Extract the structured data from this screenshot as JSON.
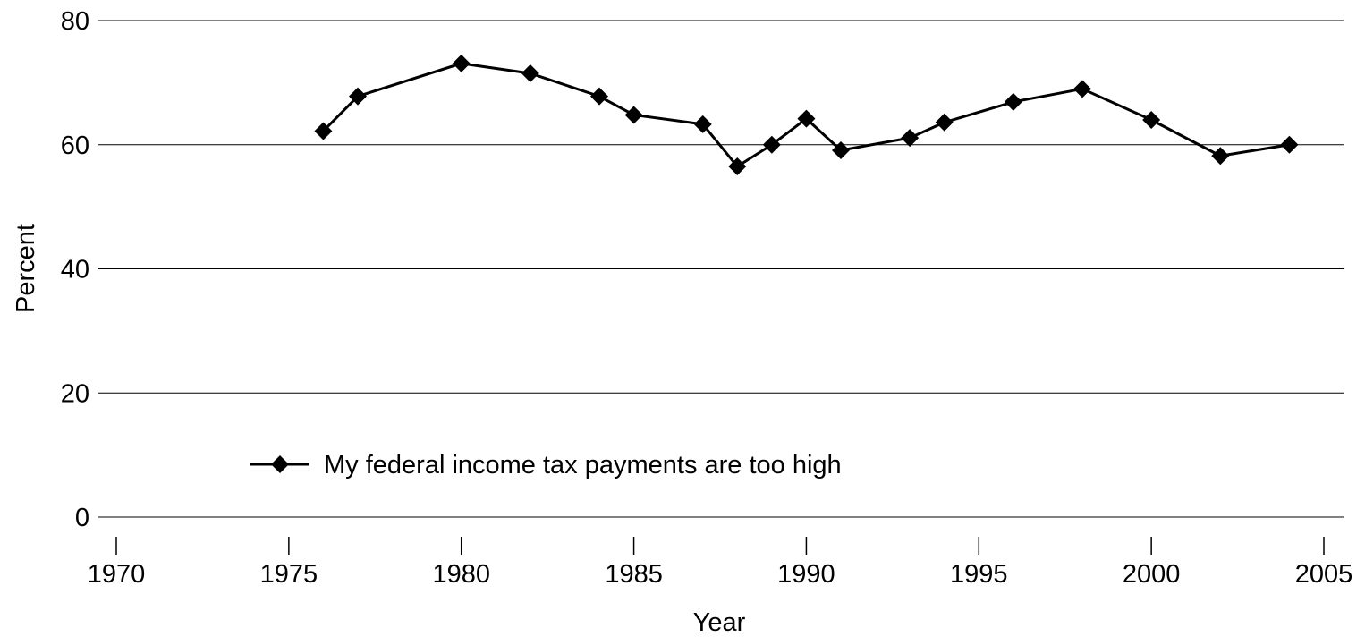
{
  "chart_data": {
    "type": "line",
    "title": "",
    "xlabel": "Year",
    "ylabel": "Percent",
    "xlim": [
      1970,
      2005
    ],
    "ylim": [
      0,
      80
    ],
    "x_ticks": [
      1970,
      1975,
      1980,
      1985,
      1990,
      1995,
      2000,
      2005
    ],
    "y_ticks": [
      0,
      20,
      40,
      60,
      80
    ],
    "grid": "horizontal",
    "legend_position": "lower-left",
    "series": [
      {
        "name": "My federal income tax payments are too high",
        "color": "#000000",
        "marker": "diamond",
        "x": [
          1976,
          1977,
          1980,
          1982,
          1984,
          1985,
          1987,
          1988,
          1989,
          1990,
          1991,
          1993,
          1994,
          1996,
          1998,
          2000,
          2002,
          2004
        ],
        "y": [
          62.2,
          67.8,
          73.1,
          71.5,
          67.8,
          64.8,
          63.3,
          56.5,
          60.0,
          64.2,
          59.1,
          61.1,
          63.6,
          66.9,
          69.0,
          64.0,
          58.2,
          60.0
        ]
      }
    ]
  }
}
